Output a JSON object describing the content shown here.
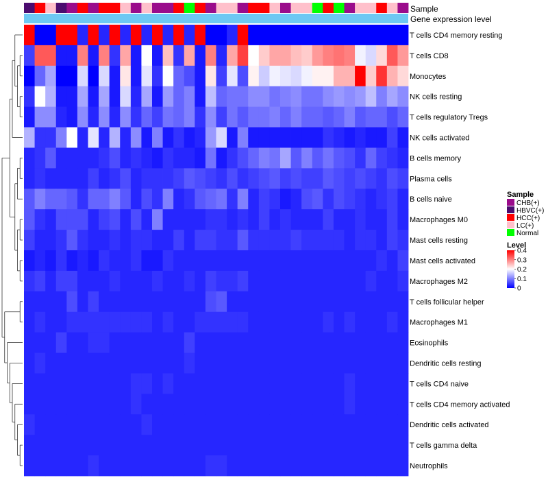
{
  "chart_data": {
    "type": "heatmap",
    "title": "",
    "annotation_labels": {
      "sample": "Sample",
      "gene_expression": "Gene expression level"
    },
    "rows": [
      "T cells CD4 memory resting",
      "T cells CD8",
      "Monocytes",
      "NK cells resting",
      "T cells regulatory  Tregs",
      "NK cells activated",
      "B cells memory",
      "Plasma cells",
      "B cells naive",
      "Macrophages M0",
      "Mast cells resting",
      "Mast cells activated",
      "Macrophages M2",
      "T cells follicular helper",
      "Macrophages M1",
      "Eosinophils",
      "Dendritic cells resting",
      "T cells CD4 naive",
      "T cells CD4 memory activated",
      "Dendritic cells activated",
      "T cells gamma delta",
      "Neutrophils"
    ],
    "sample_groups": [
      "HBVC(+)",
      "HCC(+)",
      "LC(+)",
      "HBVC(+)",
      "CHB(+)",
      "HCC(+)",
      "CHB(+)",
      "HCC(+)",
      "HCC(+)",
      "LC(+)",
      "CHB(+)",
      "LC(+)",
      "CHB(+)",
      "CHB(+)",
      "HCC(+)",
      "Normal",
      "HCC(+)",
      "CHB(+)",
      "LC(+)",
      "LC(+)",
      "CHB(+)",
      "HCC(+)",
      "HCC(+)",
      "LC(+)",
      "CHB(+)",
      "LC(+)",
      "LC(+)",
      "Normal",
      "HCC(+)",
      "Normal",
      "CHB(+)",
      "LC(+)",
      "LC(+)",
      "HCC(+)",
      "LC(+)",
      "CHB(+)"
    ],
    "values": [
      [
        0.4,
        0.0,
        0.0,
        0.4,
        0.4,
        0.03,
        0.4,
        0.03,
        0.4,
        0.03,
        0.4,
        0.03,
        0.4,
        0.03,
        0.4,
        0.03,
        0.4,
        0.0,
        0.0,
        0.03,
        0.4,
        0.0,
        0.0,
        0.0,
        0.0,
        0.0,
        0.0,
        0.0,
        0.0,
        0.0,
        0.0,
        0.0,
        0.0,
        0.0,
        0.0,
        0.0
      ],
      [
        0.05,
        0.33,
        0.33,
        0.02,
        0.02,
        0.3,
        0.02,
        0.3,
        0.04,
        0.27,
        0.02,
        0.2,
        0.02,
        0.25,
        0.04,
        0.27,
        0.02,
        0.3,
        0.03,
        0.27,
        0.35,
        0.2,
        0.24,
        0.27,
        0.27,
        0.25,
        0.24,
        0.28,
        0.3,
        0.31,
        0.3,
        0.19,
        0.17,
        0.23,
        0.33,
        0.28
      ],
      [
        0.0,
        0.08,
        0.13,
        0.0,
        0.0,
        0.17,
        0.0,
        0.17,
        0.02,
        0.22,
        0.02,
        0.18,
        0.04,
        0.2,
        0.08,
        0.06,
        0.02,
        0.22,
        0.05,
        0.18,
        0.06,
        0.21,
        0.16,
        0.19,
        0.18,
        0.17,
        0.19,
        0.21,
        0.21,
        0.26,
        0.26,
        0.4,
        0.24,
        0.36,
        0.26,
        0.23
      ],
      [
        0.04,
        0.2,
        0.14,
        0.02,
        0.02,
        0.13,
        0.02,
        0.13,
        0.02,
        0.17,
        0.03,
        0.13,
        0.02,
        0.12,
        0.08,
        0.1,
        0.02,
        0.15,
        0.08,
        0.09,
        0.09,
        0.11,
        0.11,
        0.09,
        0.1,
        0.11,
        0.09,
        0.09,
        0.11,
        0.12,
        0.11,
        0.12,
        0.15,
        0.1,
        0.13,
        0.11
      ],
      [
        0.02,
        0.11,
        0.11,
        0.03,
        0.02,
        0.11,
        0.03,
        0.11,
        0.03,
        0.11,
        0.04,
        0.08,
        0.05,
        0.09,
        0.08,
        0.1,
        0.04,
        0.11,
        0.05,
        0.09,
        0.07,
        0.09,
        0.09,
        0.1,
        0.08,
        0.1,
        0.08,
        0.08,
        0.07,
        0.08,
        0.1,
        0.07,
        0.08,
        0.08,
        0.06,
        0.08
      ],
      [
        0.14,
        0.04,
        0.04,
        0.1,
        0.2,
        0.03,
        0.18,
        0.03,
        0.14,
        0.03,
        0.11,
        0.02,
        0.1,
        0.02,
        0.04,
        0.02,
        0.03,
        0.12,
        0.17,
        0.02,
        0.1,
        0.02,
        0.02,
        0.02,
        0.02,
        0.02,
        0.02,
        0.02,
        0.04,
        0.03,
        0.02,
        0.03,
        0.02,
        0.02,
        0.05,
        0.02
      ],
      [
        0.03,
        0.04,
        0.07,
        0.03,
        0.03,
        0.03,
        0.03,
        0.04,
        0.06,
        0.03,
        0.04,
        0.03,
        0.02,
        0.04,
        0.03,
        0.03,
        0.02,
        0.09,
        0.02,
        0.04,
        0.06,
        0.08,
        0.1,
        0.09,
        0.13,
        0.07,
        0.1,
        0.07,
        0.09,
        0.07,
        0.06,
        0.04,
        0.08,
        0.05,
        0.04,
        0.03
      ],
      [
        0.03,
        0.04,
        0.03,
        0.03,
        0.03,
        0.03,
        0.05,
        0.03,
        0.04,
        0.06,
        0.03,
        0.04,
        0.04,
        0.04,
        0.05,
        0.07,
        0.06,
        0.05,
        0.04,
        0.06,
        0.04,
        0.05,
        0.06,
        0.07,
        0.05,
        0.06,
        0.05,
        0.05,
        0.07,
        0.06,
        0.05,
        0.06,
        0.05,
        0.04,
        0.06,
        0.05
      ],
      [
        0.07,
        0.1,
        0.08,
        0.08,
        0.07,
        0.04,
        0.08,
        0.08,
        0.1,
        0.07,
        0.03,
        0.06,
        0.04,
        0.1,
        0.03,
        0.04,
        0.07,
        0.08,
        0.09,
        0.04,
        0.1,
        0.03,
        0.05,
        0.04,
        0.02,
        0.03,
        0.06,
        0.07,
        0.04,
        0.06,
        0.05,
        0.04,
        0.03,
        0.04,
        0.05,
        0.03
      ],
      [
        0.07,
        0.04,
        0.03,
        0.06,
        0.06,
        0.06,
        0.03,
        0.05,
        0.06,
        0.03,
        0.06,
        0.03,
        0.1,
        0.03,
        0.03,
        0.03,
        0.03,
        0.04,
        0.04,
        0.03,
        0.04,
        0.03,
        0.05,
        0.03,
        0.04,
        0.03,
        0.03,
        0.03,
        0.05,
        0.03,
        0.03,
        0.04,
        0.03,
        0.03,
        0.05,
        0.03
      ],
      [
        0.05,
        0.03,
        0.03,
        0.04,
        0.07,
        0.04,
        0.03,
        0.03,
        0.04,
        0.03,
        0.04,
        0.04,
        0.03,
        0.03,
        0.05,
        0.03,
        0.05,
        0.05,
        0.04,
        0.04,
        0.07,
        0.04,
        0.04,
        0.04,
        0.04,
        0.05,
        0.04,
        0.04,
        0.04,
        0.04,
        0.03,
        0.04,
        0.04,
        0.03,
        0.05,
        0.04
      ],
      [
        0.02,
        0.03,
        0.02,
        0.04,
        0.02,
        0.03,
        0.02,
        0.04,
        0.03,
        0.03,
        0.04,
        0.02,
        0.02,
        0.04,
        0.03,
        0.03,
        0.03,
        0.03,
        0.03,
        0.03,
        0.03,
        0.03,
        0.03,
        0.03,
        0.03,
        0.03,
        0.03,
        0.03,
        0.03,
        0.03,
        0.03,
        0.03,
        0.03,
        0.04,
        0.03,
        0.05
      ],
      [
        0.04,
        0.05,
        0.03,
        0.05,
        0.05,
        0.03,
        0.03,
        0.03,
        0.04,
        0.03,
        0.03,
        0.03,
        0.04,
        0.03,
        0.03,
        0.04,
        0.03,
        0.05,
        0.04,
        0.04,
        0.05,
        0.03,
        0.03,
        0.03,
        0.03,
        0.03,
        0.03,
        0.03,
        0.03,
        0.03,
        0.03,
        0.03,
        0.04,
        0.03,
        0.03,
        0.04
      ],
      [
        0.03,
        0.03,
        0.03,
        0.03,
        0.06,
        0.03,
        0.05,
        0.03,
        0.03,
        0.03,
        0.03,
        0.03,
        0.03,
        0.03,
        0.03,
        0.03,
        0.03,
        0.06,
        0.07,
        0.03,
        0.03,
        0.03,
        0.03,
        0.03,
        0.03,
        0.03,
        0.03,
        0.03,
        0.03,
        0.03,
        0.03,
        0.03,
        0.03,
        0.03,
        0.03,
        0.03
      ],
      [
        0.03,
        0.04,
        0.03,
        0.03,
        0.04,
        0.04,
        0.04,
        0.04,
        0.04,
        0.04,
        0.04,
        0.04,
        0.03,
        0.04,
        0.03,
        0.03,
        0.04,
        0.04,
        0.04,
        0.04,
        0.04,
        0.03,
        0.03,
        0.03,
        0.03,
        0.03,
        0.03,
        0.03,
        0.04,
        0.03,
        0.04,
        0.03,
        0.03,
        0.03,
        0.04,
        0.03
      ],
      [
        0.03,
        0.03,
        0.03,
        0.05,
        0.03,
        0.03,
        0.04,
        0.04,
        0.03,
        0.03,
        0.03,
        0.03,
        0.03,
        0.03,
        0.03,
        0.05,
        0.03,
        0.03,
        0.03,
        0.03,
        0.03,
        0.03,
        0.03,
        0.03,
        0.03,
        0.03,
        0.03,
        0.03,
        0.03,
        0.03,
        0.03,
        0.03,
        0.03,
        0.03,
        0.03,
        0.03
      ],
      [
        0.03,
        0.04,
        0.03,
        0.03,
        0.03,
        0.03,
        0.03,
        0.03,
        0.03,
        0.03,
        0.03,
        0.03,
        0.03,
        0.03,
        0.03,
        0.04,
        0.03,
        0.03,
        0.03,
        0.03,
        0.03,
        0.03,
        0.03,
        0.03,
        0.03,
        0.03,
        0.03,
        0.03,
        0.03,
        0.03,
        0.03,
        0.03,
        0.03,
        0.03,
        0.03,
        0.03
      ],
      [
        0.03,
        0.03,
        0.03,
        0.03,
        0.03,
        0.03,
        0.03,
        0.03,
        0.03,
        0.03,
        0.04,
        0.04,
        0.03,
        0.04,
        0.03,
        0.03,
        0.03,
        0.03,
        0.03,
        0.03,
        0.03,
        0.03,
        0.03,
        0.03,
        0.03,
        0.03,
        0.03,
        0.03,
        0.03,
        0.03,
        0.04,
        0.03,
        0.03,
        0.03,
        0.03,
        0.03
      ],
      [
        0.03,
        0.03,
        0.03,
        0.03,
        0.03,
        0.03,
        0.03,
        0.03,
        0.03,
        0.03,
        0.04,
        0.03,
        0.03,
        0.03,
        0.03,
        0.03,
        0.03,
        0.03,
        0.03,
        0.03,
        0.03,
        0.03,
        0.03,
        0.03,
        0.03,
        0.03,
        0.03,
        0.03,
        0.03,
        0.03,
        0.04,
        0.03,
        0.03,
        0.03,
        0.03,
        0.03
      ],
      [
        0.04,
        0.03,
        0.03,
        0.03,
        0.03,
        0.03,
        0.03,
        0.03,
        0.03,
        0.03,
        0.03,
        0.04,
        0.03,
        0.03,
        0.03,
        0.03,
        0.03,
        0.03,
        0.03,
        0.03,
        0.03,
        0.03,
        0.03,
        0.03,
        0.03,
        0.03,
        0.03,
        0.03,
        0.03,
        0.03,
        0.03,
        0.03,
        0.03,
        0.03,
        0.03,
        0.03
      ],
      [
        0.03,
        0.03,
        0.03,
        0.03,
        0.03,
        0.03,
        0.03,
        0.03,
        0.03,
        0.03,
        0.03,
        0.03,
        0.03,
        0.03,
        0.03,
        0.03,
        0.03,
        0.03,
        0.03,
        0.03,
        0.03,
        0.03,
        0.03,
        0.03,
        0.03,
        0.03,
        0.03,
        0.03,
        0.03,
        0.03,
        0.03,
        0.03,
        0.03,
        0.03,
        0.03,
        0.03
      ],
      [
        0.03,
        0.03,
        0.03,
        0.03,
        0.03,
        0.03,
        0.04,
        0.03,
        0.03,
        0.03,
        0.03,
        0.03,
        0.03,
        0.03,
        0.03,
        0.03,
        0.03,
        0.04,
        0.04,
        0.03,
        0.03,
        0.03,
        0.03,
        0.03,
        0.03,
        0.03,
        0.03,
        0.03,
        0.03,
        0.03,
        0.03,
        0.03,
        0.03,
        0.03,
        0.03,
        0.03
      ]
    ],
    "scale": {
      "min": 0,
      "mid": 0.2,
      "max": 0.4,
      "low_color": "#0000ff",
      "mid_color": "#ffffff",
      "high_color": "#ff0000"
    },
    "gene_expression_color": "#6dc8f3",
    "legend": {
      "sample_title": "Sample",
      "sample_items": [
        {
          "label": "CHB(+)",
          "color": "#9a0c8b"
        },
        {
          "label": "HBVC(+)",
          "color": "#4b0c6f"
        },
        {
          "label": "HCC(+)",
          "color": "#ff0000"
        },
        {
          "label": "LC(+)",
          "color": "#ffc0cb"
        },
        {
          "label": "Normal",
          "color": "#00ff00"
        }
      ],
      "level_title": "Level",
      "level_ticks": [
        {
          "label": "0.4",
          "value": 0.4
        },
        {
          "label": "0.3",
          "value": 0.3
        },
        {
          "label": "0.2",
          "value": 0.2
        },
        {
          "label": "0.1",
          "value": 0.1
        },
        {
          "label": "0",
          "value": 0
        }
      ]
    }
  }
}
